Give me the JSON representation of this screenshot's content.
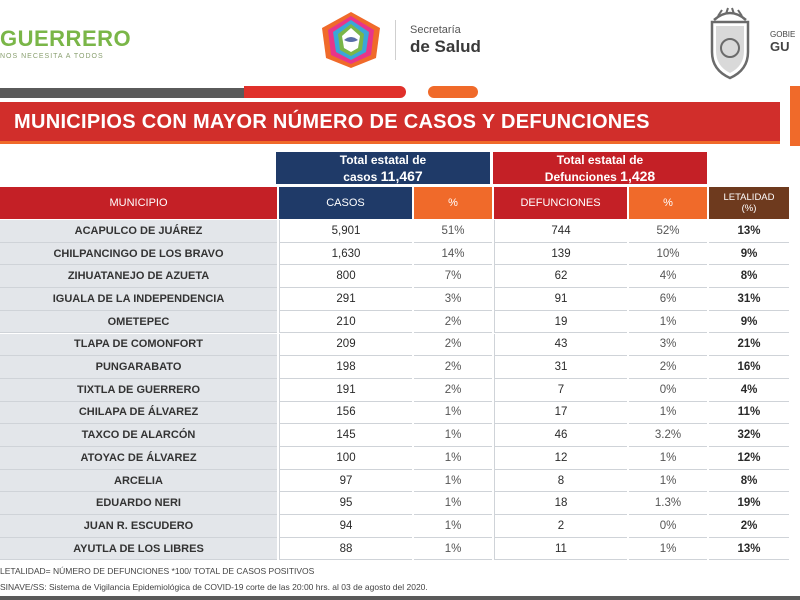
{
  "header": {
    "brand": "GUERRERO",
    "tagline": "NOS NECESITA A TODOS",
    "secretaria_line1": "Secretaría",
    "secretaria_line2": "de Salud",
    "gob_line1": "GOBIE",
    "gob_line2": "GU"
  },
  "title": "MUNICIPIOS CON MAYOR NÚMERO  DE CASOS Y DEFUNCIONES",
  "totals": {
    "casos_label": "Total estatal de",
    "casos_label2": "casos",
    "casos_value": "11,467",
    "def_label": "Total estatal de",
    "def_label2": "Defunciones",
    "def_value": "1,428"
  },
  "columns": {
    "municipio": "MUNICIPIO",
    "casos": "CASOS",
    "pct1": "%",
    "defunciones": "DEFUNCIONES",
    "pct2": "%",
    "letalidad1": "LETALIDAD",
    "letalidad2": "(%)"
  },
  "rows": [
    {
      "municipio": "ACAPULCO DE JUÁREZ",
      "casos": "5,901",
      "pct_casos": "51%",
      "defunciones": "744",
      "pct_def": "52%",
      "letalidad": "13%"
    },
    {
      "municipio": "CHILPANCINGO DE LOS BRAVO",
      "casos": "1,630",
      "pct_casos": "14%",
      "defunciones": "139",
      "pct_def": "10%",
      "letalidad": "9%"
    },
    {
      "municipio": "ZIHUATANEJO DE AZUETA",
      "casos": "800",
      "pct_casos": "7%",
      "defunciones": "62",
      "pct_def": "4%",
      "letalidad": "8%"
    },
    {
      "municipio": "IGUALA DE LA INDEPENDENCIA",
      "casos": "291",
      "pct_casos": "3%",
      "defunciones": "91",
      "pct_def": "6%",
      "letalidad": "31%"
    },
    {
      "municipio": "OMETEPEC",
      "casos": "210",
      "pct_casos": "2%",
      "defunciones": "19",
      "pct_def": "1%",
      "letalidad": "9%"
    },
    {
      "municipio": "TLAPA DE COMONFORT",
      "casos": "209",
      "pct_casos": "2%",
      "defunciones": "43",
      "pct_def": "3%",
      "letalidad": "21%"
    },
    {
      "municipio": "PUNGARABATO",
      "casos": "198",
      "pct_casos": "2%",
      "defunciones": "31",
      "pct_def": "2%",
      "letalidad": "16%"
    },
    {
      "municipio": "TIXTLA DE GUERRERO",
      "casos": "191",
      "pct_casos": "2%",
      "defunciones": "7",
      "pct_def": "0%",
      "letalidad": "4%"
    },
    {
      "municipio": "CHILAPA DE ÁLVAREZ",
      "casos": "156",
      "pct_casos": "1%",
      "defunciones": "17",
      "pct_def": "1%",
      "letalidad": "11%"
    },
    {
      "municipio": "TAXCO DE ALARCÓN",
      "casos": "145",
      "pct_casos": "1%",
      "defunciones": "46",
      "pct_def": "3.2%",
      "letalidad": "32%"
    },
    {
      "municipio": "ATOYAC DE ÁLVAREZ",
      "casos": "100",
      "pct_casos": "1%",
      "defunciones": "12",
      "pct_def": "1%",
      "letalidad": "12%"
    },
    {
      "municipio": "ARCELIA",
      "casos": "97",
      "pct_casos": "1%",
      "defunciones": "8",
      "pct_def": "1%",
      "letalidad": "8%"
    },
    {
      "municipio": "EDUARDO NERI",
      "casos": "95",
      "pct_casos": "1%",
      "defunciones": "18",
      "pct_def": "1.3%",
      "letalidad": "19%"
    },
    {
      "municipio": "JUAN R. ESCUDERO",
      "casos": "94",
      "pct_casos": "1%",
      "defunciones": "2",
      "pct_def": "0%",
      "letalidad": "2%"
    },
    {
      "municipio": "AYUTLA DE LOS LIBRES",
      "casos": "88",
      "pct_casos": "1%",
      "defunciones": "11",
      "pct_def": "1%",
      "letalidad": "13%"
    }
  ],
  "footer": {
    "note": "LETALIDAD= NÚMERO DE DEFUNCIONES *100/ TOTAL DE CASOS POSITIVOS",
    "source": "SINAVE/SS: Sistema de Vigilancia Epidemiológica de COVID-19 corte de las 20:00 hrs. al 03 de agosto del 2020."
  },
  "colors": {
    "red": "#c42026",
    "navy": "#1f3a68",
    "orange": "#f06a2a",
    "brown": "#6e3a1e",
    "green": "#7ab648"
  }
}
